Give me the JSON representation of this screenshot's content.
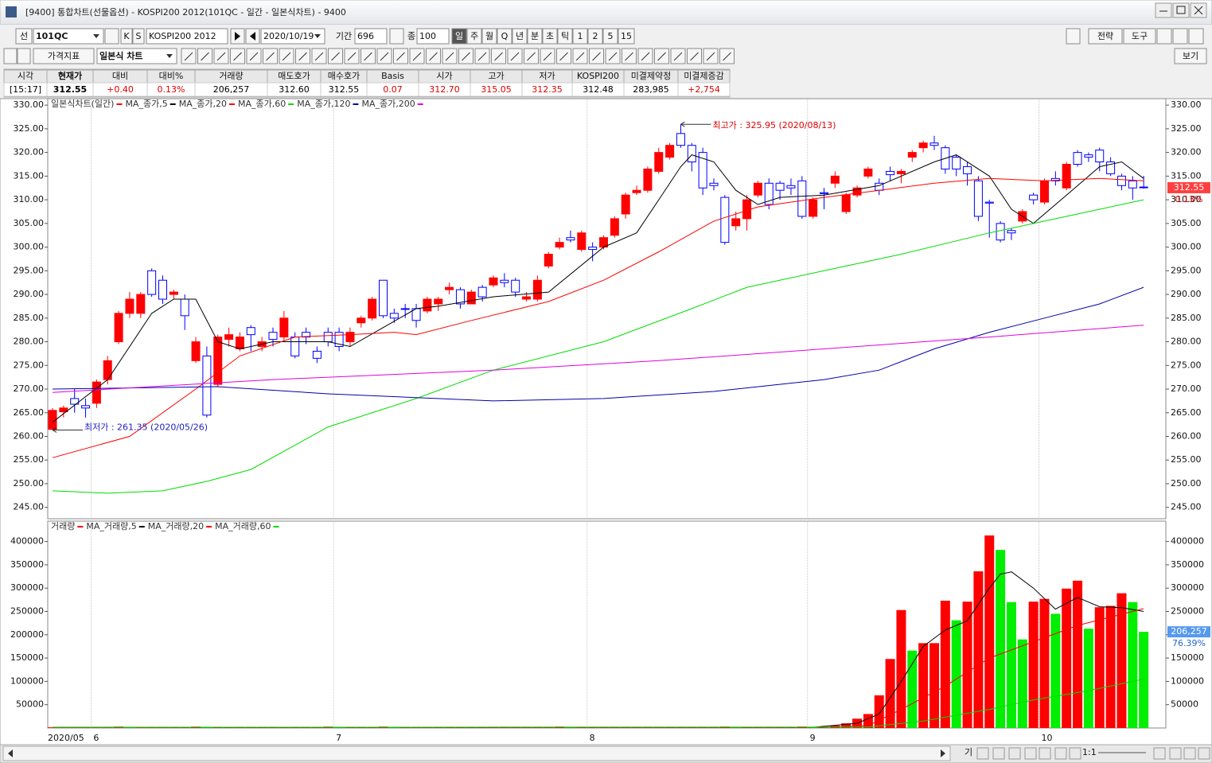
{
  "window": {
    "title": "[9400] 통합차트(선물옵션) - KOSPI200 2012(101QC - 일간 - 일본식차트) - 9400"
  },
  "toolbar": {
    "row1": [
      "선",
      "101QC",
      "K",
      "S",
      "KOSPI200 2012",
      "2020/10/19",
      "기간",
      "696",
      "종",
      "100",
      "일",
      "주",
      "월",
      "Q",
      "년",
      "분",
      "초",
      "틱",
      "1",
      "2",
      "5",
      "15",
      "전략",
      "도구"
    ],
    "row2": [
      "가격지표",
      "일본식 차트",
      "보기"
    ]
  },
  "quote_table": {
    "headers": [
      "시각",
      "현재가",
      "대비",
      "대비%",
      "거래량",
      "매도호가",
      "매수호가",
      "Basis",
      "시가",
      "고가",
      "저가",
      "KOSPI200",
      "미결제약정",
      "미결제증감"
    ],
    "values": [
      "[15:17]",
      "312.55",
      "+0.40",
      "0.13%",
      "206,257",
      "312.60",
      "312.55",
      "0.07",
      "312.70",
      "315.05",
      "312.35",
      "312.48",
      "283,985",
      "+2,754"
    ],
    "value_colors": [
      "#000000",
      "#000000",
      "#e00000",
      "#e00000",
      "#000000",
      "#000000",
      "#000000",
      "#e00000",
      "#e00000",
      "#e00000",
      "#e00000",
      "#000000",
      "#000000",
      "#e00000"
    ]
  },
  "chart_data": [
    {
      "type": "candlestick",
      "series": [
        {
          "name": "일본식차트(일간)",
          "up_color": "#ff0000",
          "down_color": "#0000ff",
          "open": [
            261.5,
            265.2,
            268,
            266.5,
            267,
            272,
            280,
            286,
            286,
            295,
            293,
            290,
            289,
            276,
            277,
            271,
            280.5,
            278.5,
            283,
            279,
            282,
            281,
            281,
            282,
            278,
            282,
            282,
            280,
            284,
            285,
            293,
            286,
            287,
            287,
            286.5,
            288,
            291,
            291,
            288,
            291.5,
            292,
            293,
            293,
            289,
            289,
            296,
            300,
            302,
            299.5,
            300,
            300,
            302.5,
            307,
            311.5,
            312,
            316,
            319,
            324,
            321.5,
            320,
            313.5,
            310.5,
            304.5,
            306,
            311,
            313.5,
            313.5,
            313,
            314,
            306.5,
            311.5,
            313.5,
            307.5,
            311,
            315,
            313.5,
            316,
            315.5,
            319,
            321,
            322,
            321,
            319,
            317,
            314,
            309.5,
            305,
            303.5,
            305.5,
            311,
            309.5,
            314.5,
            312.5,
            320,
            319.5,
            320.5,
            318,
            315,
            314,
            312.7
          ],
          "high": [
            266,
            266.5,
            270,
            268,
            272,
            277,
            286.5,
            290.5,
            290.5,
            295.5,
            294,
            291,
            290,
            281,
            279,
            281.5,
            283,
            282,
            283.5,
            281,
            283,
            286.5,
            282,
            283,
            279,
            283,
            283,
            283,
            285.5,
            289.5,
            293,
            287,
            288,
            288,
            289.5,
            289.5,
            292.5,
            291.5,
            291,
            292,
            294,
            294.5,
            293.5,
            290.5,
            294,
            299,
            302,
            303.5,
            303.5,
            301,
            302.5,
            306.5,
            311.5,
            313,
            317,
            321,
            322,
            325.95,
            322,
            321,
            314.5,
            311,
            307.5,
            311,
            314,
            314.5,
            314,
            314.5,
            315,
            310.5,
            312.5,
            316,
            311.5,
            313,
            317,
            314.5,
            317,
            316.5,
            320.5,
            322.5,
            323.5,
            321.5,
            319.5,
            318,
            315,
            310,
            305.5,
            304,
            308,
            311.5,
            314.5,
            316,
            318,
            320.5,
            320,
            321,
            319,
            315.5,
            315,
            315.05
          ],
          "low": [
            261.35,
            264,
            265,
            264,
            266,
            271,
            279.5,
            285,
            285,
            289.5,
            288,
            289,
            282.5,
            275.5,
            264,
            270.5,
            279,
            278,
            278,
            278,
            279,
            280,
            276.5,
            279.5,
            275.5,
            279,
            278,
            279,
            283,
            284.5,
            285,
            284,
            285,
            283,
            286,
            286.5,
            290,
            287,
            288,
            288.5,
            291.5,
            291.5,
            289.5,
            288.5,
            288.5,
            295.5,
            299.5,
            301,
            299,
            297,
            299.5,
            302,
            306,
            311,
            311.5,
            315.5,
            318.5,
            321,
            316,
            311,
            312,
            300.5,
            303.5,
            303.5,
            310.5,
            308,
            310,
            311,
            306,
            306,
            308,
            312.5,
            307,
            310.5,
            314.5,
            311,
            314,
            313.5,
            318,
            320,
            320.5,
            315.5,
            315,
            313,
            305.5,
            302,
            301,
            301.5,
            305,
            309,
            309,
            313,
            312,
            317,
            318,
            316,
            315,
            312,
            310,
            312.35
          ],
          "close": [
            265.5,
            266,
            266.8,
            266,
            271.5,
            276,
            286,
            289,
            290,
            290,
            289,
            290.5,
            285.5,
            280,
            264.5,
            281,
            281.5,
            281,
            281.5,
            280,
            280.5,
            285,
            277,
            281,
            276.5,
            280,
            279,
            282,
            285,
            289,
            285.5,
            285,
            287,
            284.5,
            289,
            289,
            291.5,
            288,
            290.5,
            289.5,
            293.5,
            292.5,
            290.5,
            289.5,
            293,
            298.5,
            301,
            301.5,
            303,
            299.5,
            302,
            306,
            311,
            312,
            316.5,
            320,
            321.5,
            321.5,
            318,
            312.5,
            313,
            301,
            306,
            310,
            313.5,
            309,
            312,
            312.5,
            306.5,
            310,
            311.3,
            315,
            311,
            312.5,
            316.5,
            312,
            315.3,
            316,
            320,
            322,
            321.5,
            316.5,
            316.5,
            315.5,
            306.5,
            309.3,
            301.5,
            303,
            307.5,
            310,
            314,
            314,
            317.5,
            317.5,
            319,
            318,
            315.5,
            313,
            312.5,
            312.55
          ]
        },
        {
          "name": "MA_종가,5",
          "color": "#000000",
          "x": [
            0,
            5,
            9,
            11,
            13,
            15,
            17,
            20,
            25,
            27,
            30,
            33,
            35,
            40,
            45,
            50,
            53,
            55,
            57,
            58,
            60,
            62,
            64,
            66,
            70,
            75,
            80,
            82,
            85,
            87,
            89,
            92,
            95,
            97,
            99
          ],
          "values": [
            263,
            272,
            286,
            289,
            289,
            280,
            278.5,
            280,
            280,
            279,
            283,
            287,
            287.5,
            289.5,
            290.5,
            300,
            303,
            310,
            317,
            319.5,
            318,
            312,
            309,
            310.5,
            311,
            313,
            318,
            319.5,
            315,
            308,
            305,
            311,
            317,
            318,
            314.5
          ]
        },
        {
          "name": "MA_종가,20",
          "color": "#ff0000",
          "x": [
            0,
            7,
            13,
            17,
            22,
            27,
            31,
            33,
            38,
            45,
            50,
            55,
            60,
            64,
            70,
            75,
            80,
            85,
            90,
            95,
            99
          ],
          "values": [
            255.5,
            260,
            270,
            277,
            281,
            281.5,
            282,
            281.5,
            284.5,
            288.5,
            293,
            299,
            305.5,
            308.5,
            310.5,
            312,
            313.5,
            314.5,
            314,
            314.5,
            314
          ]
        },
        {
          "name": "MA_종가,60",
          "color": "#00dd00",
          "x": [
            0,
            5,
            10,
            14,
            18,
            25,
            33,
            40,
            50,
            58,
            63,
            70,
            77,
            85,
            90,
            95,
            99
          ],
          "values": [
            248.5,
            248,
            248.5,
            250.5,
            253,
            262,
            268,
            274,
            280,
            287,
            291.5,
            295,
            298.5,
            303,
            305.5,
            308,
            310
          ]
        },
        {
          "name": "MA_종가,120",
          "color": "#0000aa",
          "x": [
            0,
            15,
            25,
            40,
            50,
            60,
            70,
            75,
            80,
            85,
            90,
            95,
            99
          ],
          "values": [
            270,
            270.5,
            269,
            267.5,
            268,
            269.5,
            272,
            274,
            278.5,
            282,
            285,
            288,
            291.5
          ]
        },
        {
          "name": "MA_종가,200",
          "color": "#e000e0",
          "x": [
            0,
            20,
            40,
            55,
            70,
            85,
            99
          ],
          "values": [
            269.3,
            272,
            274,
            276,
            278.5,
            281,
            283.5
          ]
        }
      ],
      "last_change_label": "0.13%",
      "annotations": [
        {
          "label": "최고가 : 325.95 (2020/08/13)",
          "value": 325.95,
          "color": "#e00000"
        },
        {
          "label": "최저가 : 261.35 (2020/05/26)",
          "value": 261.35,
          "color": "#2020c0"
        }
      ],
      "ylim": [
        242.6,
        331.2
      ],
      "yticks": [
        {
          "value": 245,
          "label": "245.00"
        },
        {
          "value": 250,
          "label": "250.00"
        },
        {
          "value": 255,
          "label": "255.00"
        },
        {
          "value": 260,
          "label": "260.00"
        },
        {
          "value": 265,
          "label": "265.00"
        },
        {
          "value": 270,
          "label": "270.00"
        },
        {
          "value": 275,
          "label": "275.00"
        },
        {
          "value": 280,
          "label": "280.00"
        },
        {
          "value": 285,
          "label": "285.00"
        },
        {
          "value": 290,
          "label": "290.00"
        },
        {
          "value": 295,
          "label": "295.00"
        },
        {
          "value": 300,
          "label": "300.00"
        },
        {
          "value": 305,
          "label": "305.00"
        },
        {
          "value": 310,
          "label": "310.00"
        },
        {
          "value": 315,
          "label": "315.00"
        },
        {
          "value": 320,
          "label": "320.00"
        },
        {
          "value": 325,
          "label": "325.00"
        },
        {
          "value": 330,
          "label": "330.00"
        }
      ]
    },
    {
      "type": "bar",
      "series": [
        {
          "name": "거래량",
          "color": "#ff0000",
          "up_color": "#ff0000",
          "down_color": "#00ee00",
          "values": [
            1500,
            1500,
            1500,
            1500,
            1500,
            1500,
            3000,
            1500,
            1500,
            1500,
            1500,
            1500,
            1500,
            3000,
            1500,
            1500,
            1500,
            1500,
            1500,
            1500,
            1500,
            1500,
            1500,
            1500,
            1500,
            3000,
            1500,
            1500,
            1500,
            1500,
            3000,
            1500,
            1500,
            1500,
            1500,
            1500,
            1500,
            1500,
            1500,
            1500,
            1500,
            1500,
            1500,
            1500,
            1500,
            1500,
            3000,
            1500,
            1500,
            1500,
            1500,
            1500,
            1500,
            1500,
            1500,
            1500,
            1500,
            1500,
            1500,
            1500,
            1500,
            3000,
            1500,
            1500,
            1500,
            1500,
            1500,
            1500,
            3000,
            1500,
            1500,
            5000,
            10000,
            20000,
            30000,
            70000,
            148000,
            253000,
            166000,
            182000,
            182000,
            273000,
            231000,
            271000,
            336000,
            413000,
            382000,
            270000,
            190000,
            271000,
            277000,
            245000,
            299000,
            316000,
            213000,
            259000,
            262000,
            289000,
            270000,
            206257
          ],
          "last_value_label": "206,257",
          "last_ratio_label": "76.39%"
        },
        {
          "name": "MA_거래량,5",
          "color": "#000000",
          "x": [
            0,
            69,
            73,
            75,
            77,
            79,
            81,
            83,
            85,
            86,
            87,
            89,
            91,
            93,
            95,
            97,
            99
          ],
          "values": [
            1500,
            1500,
            10000,
            30000,
            100000,
            175000,
            210000,
            230000,
            300000,
            330000,
            335000,
            300000,
            255000,
            280000,
            260000,
            258000,
            250000
          ]
        },
        {
          "name": "MA_거래량,20",
          "color": "#ff0000",
          "x": [
            0,
            70,
            74,
            77,
            81,
            85,
            89,
            93,
            99
          ],
          "values": [
            1500,
            1500,
            5000,
            40000,
            90000,
            150000,
            185000,
            220000,
            256000
          ]
        },
        {
          "name": "MA_거래량,60",
          "color": "#00dd00",
          "x": [
            0,
            74,
            79,
            85,
            89,
            94,
            99
          ],
          "values": [
            1500,
            2000,
            15000,
            40000,
            60000,
            80000,
            105000
          ]
        }
      ],
      "ylim": [
        0,
        442000
      ],
      "yticks": [
        50000,
        100000,
        150000,
        200000,
        250000,
        300000,
        350000,
        400000
      ],
      "xticks": [
        {
          "value": 0,
          "label": "2020/05"
        },
        {
          "value": 4,
          "label": "6"
        },
        {
          "value": 26,
          "label": "7"
        },
        {
          "value": 49,
          "label": "8"
        },
        {
          "value": 69,
          "label": "9"
        },
        {
          "value": 90,
          "label": "10"
        }
      ]
    }
  ],
  "status_bar": {
    "labels": [
      "기",
      "1:1"
    ]
  }
}
